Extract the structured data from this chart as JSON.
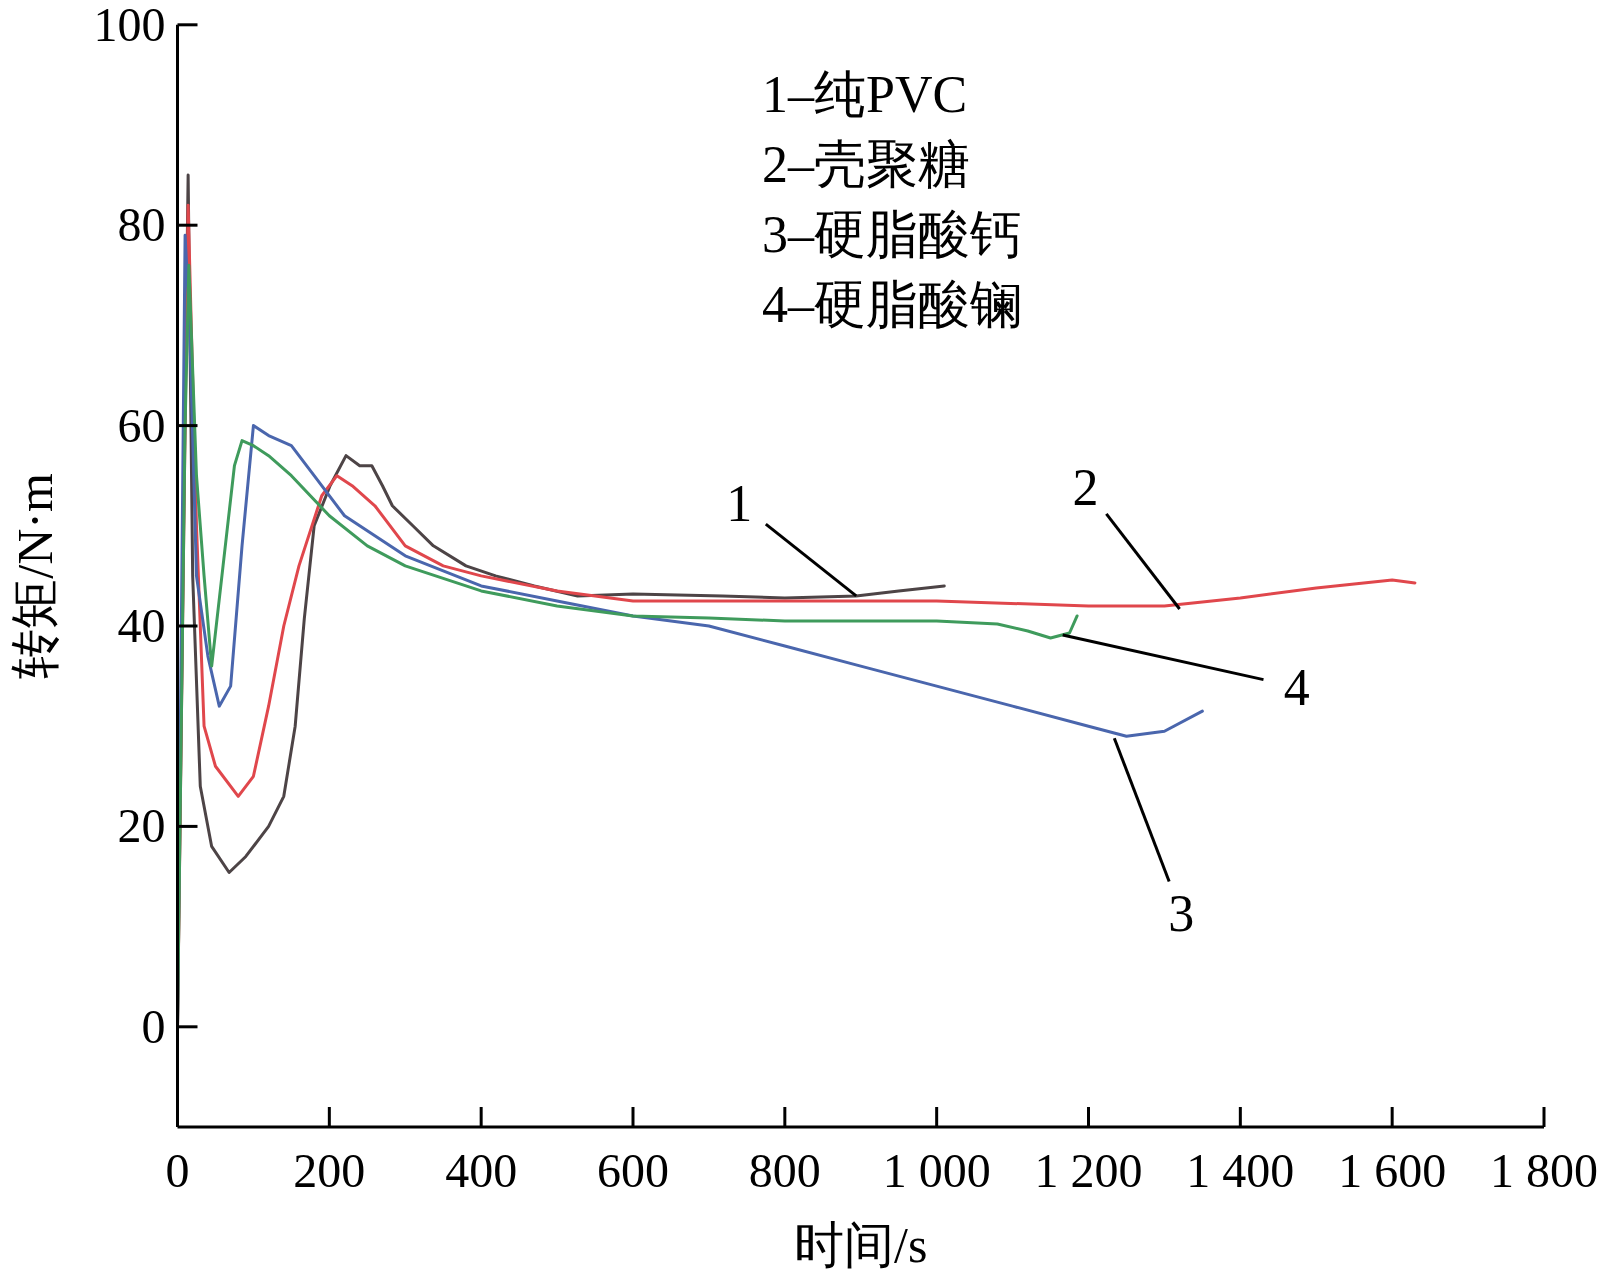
{
  "chart_data": {
    "type": "line",
    "xlabel": "时间/s",
    "ylabel": "转矩/N·m",
    "xlim": [
      0,
      1800
    ],
    "ylim": [
      -10,
      100
    ],
    "xticks": [
      0,
      200,
      400,
      600,
      800,
      {
        "value": 1000,
        "label": "1 000"
      },
      {
        "value": 1200,
        "label": "1 200"
      },
      {
        "value": 1400,
        "label": "1 400"
      },
      {
        "value": 1600,
        "label": "1 600"
      },
      {
        "value": 1800,
        "label": "1 800"
      }
    ],
    "yticks": [
      0,
      20,
      40,
      60,
      80,
      100
    ],
    "series": [
      {
        "color": "#4d4446",
        "x": [
          0,
          8,
          14,
          20,
          30,
          45,
          68,
          90,
          120,
          140,
          155,
          167,
          180,
          201,
          222,
          240,
          256,
          270,
          283,
          310,
          337,
          380,
          419,
          470,
          527,
          600,
          718,
          800,
          894,
          950,
          1010
        ],
        "values": [
          0,
          50,
          85,
          45,
          24,
          18,
          15.4,
          17,
          20,
          23,
          30,
          40.7,
          50,
          54,
          57,
          56,
          56,
          54,
          52,
          50,
          48,
          46,
          45,
          44,
          43,
          43.2,
          43,
          42.8,
          43,
          43.5,
          44
        ]
      },
      {
        "color": "#e0474c",
        "x": [
          0,
          10,
          14,
          25,
          35,
          50,
          80,
          100,
          120,
          140,
          160,
          190,
          210,
          230,
          260,
          300,
          350,
          400,
          500,
          600,
          800,
          1000,
          1200,
          1300,
          1400,
          1500,
          1600,
          1630
        ],
        "values": [
          0,
          60,
          82,
          50,
          30,
          26,
          23,
          25,
          32,
          40,
          46,
          53,
          55,
          54,
          52,
          48,
          46,
          45,
          43.5,
          42.5,
          42.5,
          42.5,
          42,
          42,
          42.8,
          43.8,
          44.6,
          44.3
        ]
      },
      {
        "color": "#4a66ad",
        "x": [
          0,
          10,
          16,
          25,
          40,
          55,
          70,
          85,
          100,
          120,
          150,
          180,
          220,
          300,
          400,
          500,
          600,
          700,
          800,
          900,
          1000,
          1100,
          1200,
          1250,
          1300,
          1350
        ],
        "values": [
          0,
          79,
          70,
          45,
          37,
          32,
          34,
          48,
          60,
          59,
          58,
          55,
          51,
          47,
          44,
          42.5,
          41,
          40,
          38,
          36,
          34,
          32,
          30,
          29,
          29.5,
          31.5
        ]
      },
      {
        "color": "#3f9b5c",
        "x": [
          0,
          10,
          15,
          25,
          35,
          45,
          60,
          75,
          85,
          100,
          120,
          150,
          200,
          250,
          300,
          400,
          500,
          600,
          700,
          800,
          900,
          1000,
          1080,
          1120,
          1150,
          1175,
          1185
        ],
        "values": [
          0,
          60,
          76,
          55,
          45,
          36,
          46,
          56,
          58.5,
          58,
          57,
          55,
          51,
          48,
          46,
          43.5,
          42,
          41,
          40.8,
          40.5,
          40.5,
          40.5,
          40.2,
          39.5,
          38.8,
          39.3,
          41
        ]
      }
    ],
    "annotations": [
      "1–纯PVC",
      "2–壳聚糖",
      "3–硬脂酸钙",
      "4–硬脂酸镧",
      {
        "text": "1",
        "x": 894,
        "y": 43
      },
      {
        "text": "2",
        "x": 1320,
        "y": 41.7
      },
      {
        "text": "3",
        "x": 1234,
        "y": 28.8
      },
      {
        "text": "4",
        "x": 1166,
        "y": 39.1
      }
    ]
  }
}
